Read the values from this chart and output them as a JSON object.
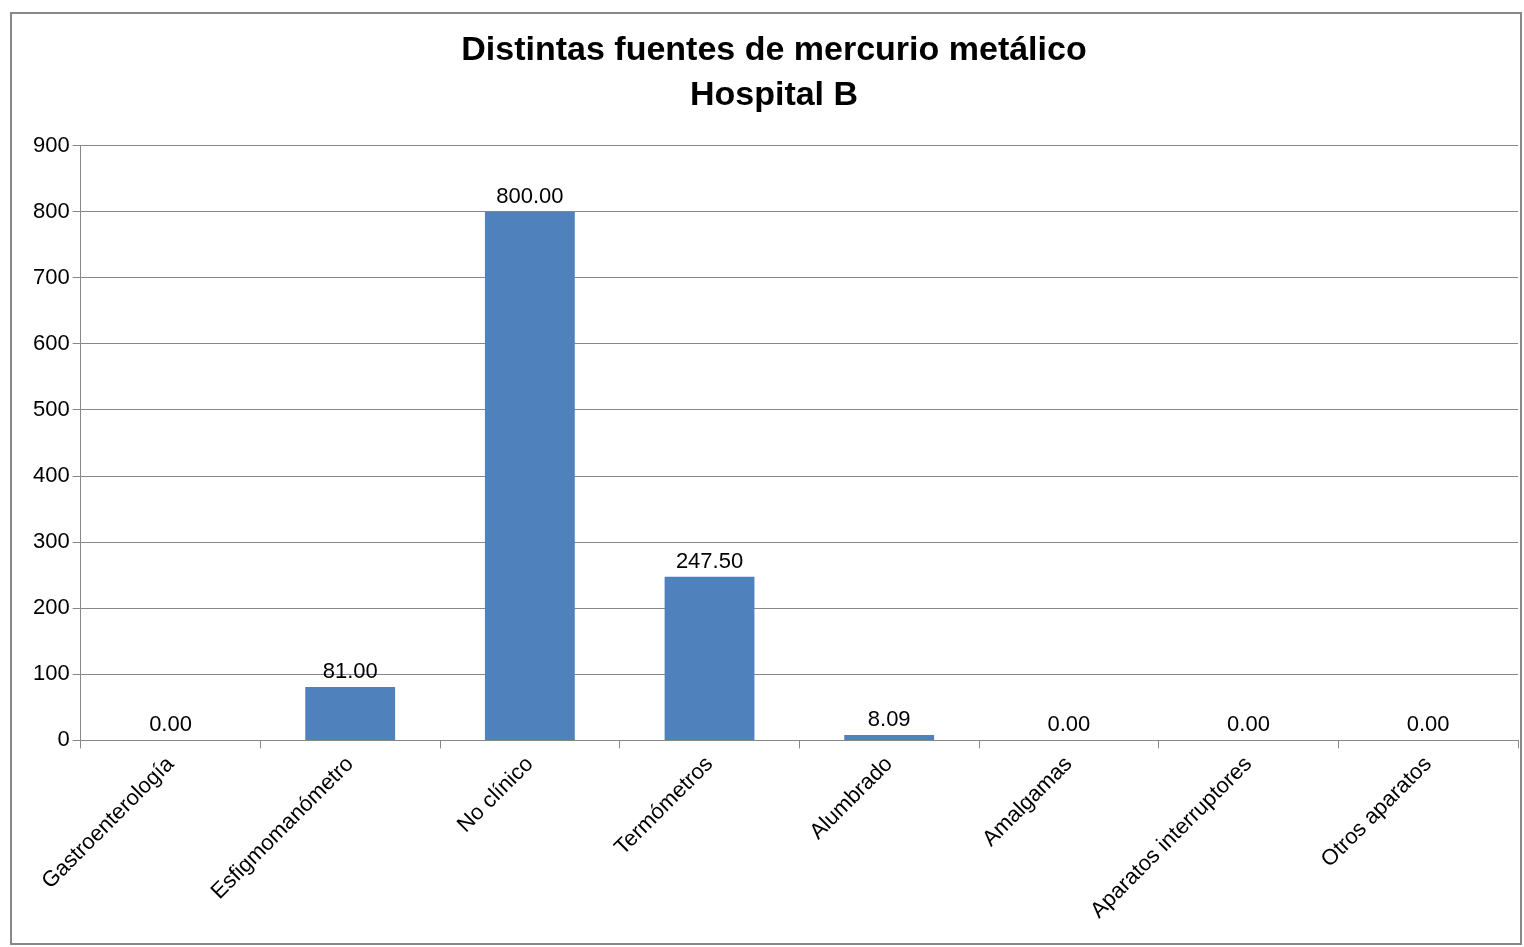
{
  "chart_data": {
    "type": "bar",
    "title": "Distintas fuentes de mercurio metálico",
    "subtitle": "Hospital B",
    "categories": [
      "Gastroenterología",
      "Esfigmomanómetro",
      "No clínico",
      "Termómetros",
      "Alumbrado",
      "Amalgamas",
      "Aparatos interruptores",
      "Otros aparatos"
    ],
    "values": [
      0,
      81,
      800,
      247.5,
      8.09,
      0,
      0,
      0
    ],
    "value_labels": [
      "0.00",
      "81.00",
      "800.00",
      "247.50",
      "8.09",
      "0.00",
      "0.00",
      "0.00"
    ],
    "color": "#4f81bd",
    "ylim": [
      0,
      900
    ],
    "yticks": [
      0,
      100,
      200,
      300,
      400,
      500,
      600,
      700,
      800,
      900
    ],
    "grid": "y",
    "legend": false
  }
}
